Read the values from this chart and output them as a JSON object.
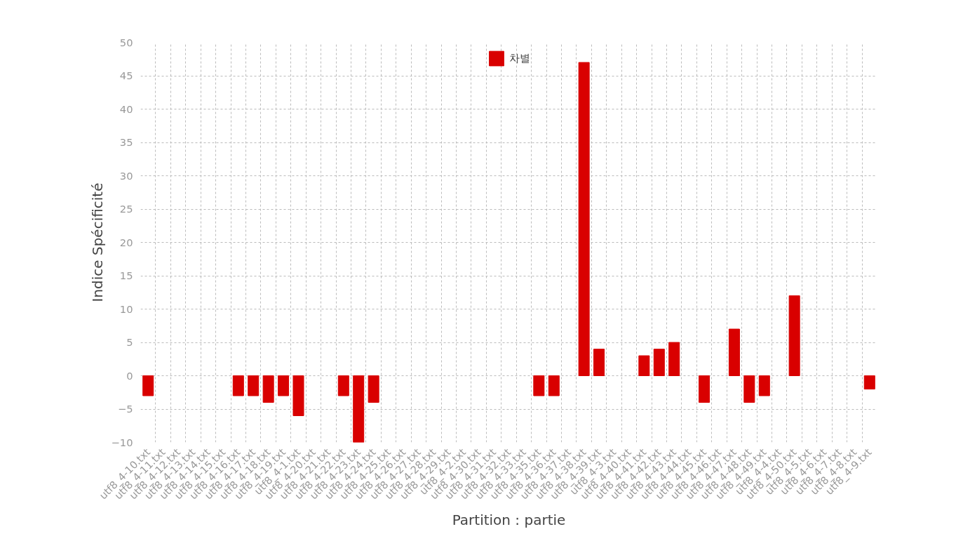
{
  "chart_data": {
    "type": "bar",
    "xlabel": "Partition : partie",
    "ylabel": "Indice Spécificité",
    "categories": [
      "utf8_4-10.txt",
      "utf8_4-11.txt",
      "utf8_4-12.txt",
      "utf8_4-13.txt",
      "utf8_4-14.txt",
      "utf8_4-15.txt",
      "utf8_4-16.txt",
      "utf8_4-17.txt",
      "utf8_4-18.txt",
      "utf8_4-19.txt",
      "utf8_4-1.txt",
      "utf8_4-20.txt",
      "utf8_4-21.txt",
      "utf8_4-22.txt",
      "utf8_4-23.txt",
      "utf8_4-24.txt",
      "utf8_4-25.txt",
      "utf8_4-26.txt",
      "utf8_4-27.txt",
      "utf8_4-28.txt",
      "utf8_4-29.txt",
      "utf8_4-2.txt",
      "utf8_4-30.txt",
      "utf8_4-31.txt",
      "utf8_4-32.txt",
      "utf8_4-33.txt",
      "utf8_4-35.txt",
      "utf8_4-36.txt",
      "utf8_4-37.txt",
      "utf8_4-38.txt",
      "utf8_4-39.txt",
      "utf8_4-3.txt",
      "utf8_4-40.txt",
      "utf8_4-41.txt",
      "utf8_4-42.txt",
      "utf8_4-43.txt",
      "utf8_4-44.txt",
      "utf8_4-45.txt",
      "utf8_4-46.txt",
      "utf8_4-47.txt",
      "utf8_4-48.txt",
      "utf8_4-49.txt",
      "utf8_4-4.txt",
      "utf8_4-50.txt",
      "utf8_4-5.txt",
      "utf8_4-6.txt",
      "utf8_4-7.txt",
      "utf8_4-8.txt",
      "utf8_4-9.txt"
    ],
    "series": [
      {
        "name": "차별",
        "color": "#d90000",
        "values": [
          -3,
          null,
          null,
          null,
          null,
          null,
          -3,
          -3,
          -4,
          -3,
          -6,
          null,
          null,
          -3,
          -10,
          -4,
          null,
          null,
          null,
          null,
          null,
          null,
          null,
          null,
          null,
          null,
          -3,
          -3,
          null,
          47,
          4,
          null,
          null,
          3,
          4,
          5,
          null,
          -4,
          null,
          7,
          -4,
          -3,
          null,
          12,
          null,
          null,
          null,
          null,
          -2
        ]
      }
    ],
    "ylim": [
      -10,
      50
    ],
    "yticks": [
      -10,
      -5,
      0,
      5,
      10,
      15,
      20,
      25,
      30,
      35,
      40,
      45,
      50
    ],
    "grid": true,
    "legend": "top"
  }
}
